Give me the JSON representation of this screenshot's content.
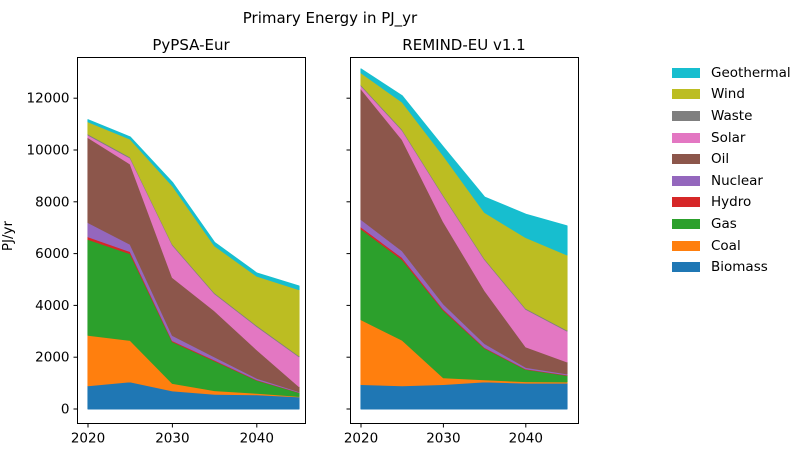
{
  "figure": {
    "title": "Primary Energy in PJ_yr",
    "ylabel": "PJ/yr",
    "background": "#ffffff"
  },
  "chart_data": [
    {
      "type": "area",
      "stacked": true,
      "title": "PyPSA-Eur",
      "x": [
        2020,
        2025,
        2030,
        2035,
        2040,
        2045
      ],
      "xtick_labels": [
        "2020",
        "2030",
        "2040"
      ],
      "xticks": [
        2020,
        2030,
        2040
      ],
      "ytick_labels": [
        "0",
        "2000",
        "4000",
        "6000",
        "8000",
        "10000",
        "12000"
      ],
      "yticks": [
        0,
        2000,
        4000,
        6000,
        8000,
        10000,
        12000
      ],
      "ylim": [
        0,
        13600
      ],
      "grid": false,
      "series": [
        {
          "name": "Biomass",
          "color": "#1f77b4",
          "values": [
            900,
            1050,
            700,
            570,
            550,
            470
          ]
        },
        {
          "name": "Coal",
          "color": "#ff7f0e",
          "values": [
            1950,
            1600,
            290,
            140,
            60,
            20
          ]
        },
        {
          "name": "Gas",
          "color": "#2ca02c",
          "values": [
            3700,
            3350,
            1610,
            1150,
            500,
            150
          ]
        },
        {
          "name": "Hydro",
          "color": "#d62728",
          "values": [
            100,
            80,
            40,
            30,
            20,
            10
          ]
        },
        {
          "name": "Nuclear",
          "color": "#9467bd",
          "values": [
            550,
            280,
            200,
            120,
            60,
            20
          ]
        },
        {
          "name": "Oil",
          "color": "#8c564b",
          "values": [
            3280,
            3100,
            2240,
            1780,
            1100,
            200
          ]
        },
        {
          "name": "Solar",
          "color": "#e377c2",
          "values": [
            100,
            230,
            1250,
            660,
            900,
            1150
          ]
        },
        {
          "name": "Waste",
          "color": "#7f7f7f",
          "values": [
            40,
            40,
            40,
            40,
            40,
            40
          ]
        },
        {
          "name": "Wind",
          "color": "#bcbd22",
          "values": [
            470,
            690,
            2250,
            1810,
            1900,
            2550
          ]
        },
        {
          "name": "Geothermal",
          "color": "#17becf",
          "values": [
            80,
            80,
            130,
            130,
            120,
            140
          ]
        }
      ]
    },
    {
      "type": "area",
      "stacked": true,
      "title": "REMIND-EU v1.1",
      "x": [
        2020,
        2025,
        2030,
        2035,
        2040,
        2045
      ],
      "xtick_labels": [
        "2020",
        "2030",
        "2040"
      ],
      "xticks": [
        2020,
        2030,
        2040
      ],
      "ytick_labels": [],
      "yticks": [
        0,
        2000,
        4000,
        6000,
        8000,
        10000,
        12000
      ],
      "ylim": [
        0,
        13600
      ],
      "grid": false,
      "series": [
        {
          "name": "Biomass",
          "color": "#1f77b4",
          "values": [
            950,
            900,
            950,
            1050,
            1000,
            1000
          ]
        },
        {
          "name": "Coal",
          "color": "#ff7f0e",
          "values": [
            2500,
            1760,
            260,
            80,
            60,
            50
          ]
        },
        {
          "name": "Gas",
          "color": "#2ca02c",
          "values": [
            3500,
            3110,
            2600,
            1220,
            470,
            250
          ]
        },
        {
          "name": "Hydro",
          "color": "#d62728",
          "values": [
            80,
            80,
            50,
            30,
            20,
            20
          ]
        },
        {
          "name": "Nuclear",
          "color": "#9467bd",
          "values": [
            290,
            260,
            200,
            150,
            60,
            40
          ]
        },
        {
          "name": "Oil",
          "color": "#8c564b",
          "values": [
            5040,
            4290,
            3170,
            2050,
            790,
            460
          ]
        },
        {
          "name": "Solar",
          "color": "#e377c2",
          "values": [
            120,
            360,
            990,
            1190,
            1450,
            1190
          ]
        },
        {
          "name": "Waste",
          "color": "#7f7f7f",
          "values": [
            40,
            40,
            40,
            40,
            40,
            40
          ]
        },
        {
          "name": "Wind",
          "color": "#bcbd22",
          "values": [
            460,
            1050,
            1520,
            1780,
            2730,
            2900
          ]
        },
        {
          "name": "Geothermal",
          "color": "#17becf",
          "values": [
            150,
            240,
            330,
            590,
            900,
            1120
          ]
        }
      ]
    }
  ],
  "legend": {
    "position": "right",
    "entries": [
      {
        "label": "Geothermal",
        "color": "#17becf"
      },
      {
        "label": "Wind",
        "color": "#bcbd22"
      },
      {
        "label": "Waste",
        "color": "#7f7f7f"
      },
      {
        "label": "Solar",
        "color": "#e377c2"
      },
      {
        "label": "Oil",
        "color": "#8c564b"
      },
      {
        "label": "Nuclear",
        "color": "#9467bd"
      },
      {
        "label": "Hydro",
        "color": "#d62728"
      },
      {
        "label": "Gas",
        "color": "#2ca02c"
      },
      {
        "label": "Coal",
        "color": "#ff7f0e"
      },
      {
        "label": "Biomass",
        "color": "#1f77b4"
      }
    ]
  }
}
